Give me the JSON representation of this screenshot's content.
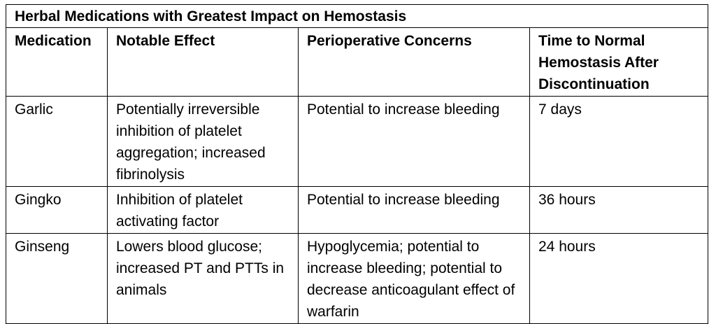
{
  "table": {
    "title": "Herbal Medications with Greatest Impact on Hemostasis",
    "headers": [
      "Medication",
      "Notable Effect",
      "Perioperative Concerns",
      "Time to Normal Hemostasis After Discontinuation"
    ],
    "rows": [
      {
        "medication": "Garlic",
        "effect": "Potentially irreversible inhibition of platelet aggregation; increased fibrinolysis",
        "concerns": "Potential to increase bleeding",
        "time": "7 days"
      },
      {
        "medication": "Gingko",
        "effect": "Inhibition of platelet activating factor",
        "concerns": "Potential to increase bleeding",
        "time": "36 hours"
      },
      {
        "medication": "Ginseng",
        "effect": "Lowers blood glucose; increased PT and PTTs in animals",
        "concerns": "Hypoglycemia; potential to increase bleeding; potential to decrease anticoagulant effect of warfarin",
        "time": "24 hours"
      }
    ]
  }
}
